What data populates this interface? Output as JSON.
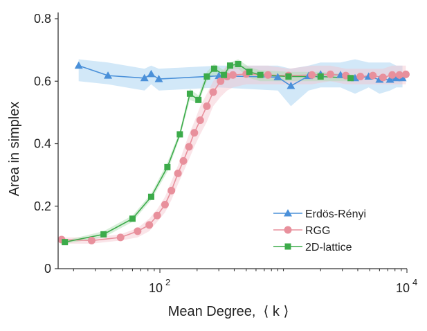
{
  "chart_data": {
    "type": "line",
    "x_scale": "log",
    "xlim": [
      15,
      10000
    ],
    "ylim": [
      0,
      0.82
    ],
    "xlabel": "Mean Degree,  ⟨ k ⟩",
    "ylabel": "Area in simplex",
    "yticks": [
      "0",
      "0.2",
      "0.4",
      "0.6",
      "0.8"
    ],
    "ytick_values": [
      0,
      0.2,
      0.4,
      0.6,
      0.8
    ],
    "xtick_base": "10",
    "xticks": [
      {
        "value": 100,
        "exp": "2"
      },
      {
        "value": 10000,
        "exp": "4"
      }
    ],
    "legend_position": "lower-right",
    "series": [
      {
        "name": "Erdös-Rényi",
        "color": "#4a90d9",
        "band_color": "#9ccbef",
        "marker": "triangle",
        "x": [
          22,
          38,
          75,
          85,
          98,
          300,
          900,
          1150,
          1600,
          2000,
          2900,
          3800,
          4900,
          6000,
          7300,
          8200,
          9200
        ],
        "y": [
          0.65,
          0.618,
          0.61,
          0.623,
          0.607,
          0.617,
          0.613,
          0.585,
          0.617,
          0.622,
          0.62,
          0.61,
          0.615,
          0.605,
          0.605,
          0.61,
          0.61
        ],
        "y_low": [
          0.6,
          0.59,
          0.57,
          0.59,
          0.57,
          0.58,
          0.57,
          0.52,
          0.57,
          0.58,
          0.58,
          0.56,
          0.58,
          0.56,
          0.57,
          0.58,
          0.58
        ],
        "y_high": [
          0.67,
          0.66,
          0.64,
          0.65,
          0.64,
          0.65,
          0.65,
          0.64,
          0.65,
          0.66,
          0.66,
          0.67,
          0.66,
          0.66,
          0.66,
          0.65,
          0.65
        ]
      },
      {
        "name": "RGG",
        "color": "#e8909c",
        "band_color": "#f5c4cb",
        "marker": "circle",
        "x": [
          16,
          28,
          48,
          66,
          82,
          95,
          110,
          124,
          140,
          155,
          172,
          190,
          212,
          240,
          270,
          310,
          350,
          390,
          500,
          750,
          1100,
          1700,
          2400,
          3200,
          4200,
          5300,
          6400,
          7600,
          8700,
          9800
        ],
        "y": [
          0.093,
          0.09,
          0.1,
          0.12,
          0.14,
          0.17,
          0.205,
          0.25,
          0.305,
          0.345,
          0.39,
          0.435,
          0.475,
          0.52,
          0.565,
          0.6,
          0.615,
          0.62,
          0.623,
          0.62,
          0.618,
          0.62,
          0.622,
          0.618,
          0.615,
          0.618,
          0.612,
          0.62,
          0.62,
          0.622
        ],
        "y_low": [
          0.08,
          0.08,
          0.09,
          0.1,
          0.12,
          0.15,
          0.18,
          0.22,
          0.27,
          0.31,
          0.35,
          0.39,
          0.43,
          0.47,
          0.52,
          0.55,
          0.57,
          0.58,
          0.59,
          0.59,
          0.59,
          0.59,
          0.6,
          0.59,
          0.59,
          0.59,
          0.59,
          0.59,
          0.59,
          0.59
        ],
        "y_high": [
          0.1,
          0.1,
          0.11,
          0.13,
          0.16,
          0.19,
          0.23,
          0.28,
          0.33,
          0.38,
          0.43,
          0.47,
          0.52,
          0.56,
          0.6,
          0.63,
          0.65,
          0.65,
          0.65,
          0.65,
          0.64,
          0.65,
          0.65,
          0.64,
          0.64,
          0.64,
          0.64,
          0.65,
          0.65,
          0.65
        ]
      },
      {
        "name": "2D-lattice",
        "color": "#3cab4a",
        "band_color": "#a9dcae",
        "marker": "square",
        "x": [
          17,
          35,
          60,
          85,
          115,
          145,
          175,
          205,
          240,
          275,
          330,
          370,
          430,
          530,
          650,
          1100,
          2000,
          3500
        ],
        "y": [
          0.085,
          0.11,
          0.16,
          0.23,
          0.325,
          0.43,
          0.56,
          0.54,
          0.615,
          0.64,
          0.62,
          0.65,
          0.655,
          0.63,
          0.62,
          0.615,
          0.615,
          0.61
        ],
        "y_low": [
          0.08,
          0.1,
          0.15,
          0.22,
          0.31,
          0.42,
          0.54,
          0.53,
          0.6,
          0.62,
          0.6,
          0.64,
          0.64,
          0.61,
          0.6,
          0.6,
          0.6,
          0.6
        ],
        "y_high": [
          0.09,
          0.12,
          0.17,
          0.24,
          0.34,
          0.44,
          0.575,
          0.555,
          0.63,
          0.655,
          0.635,
          0.66,
          0.67,
          0.645,
          0.635,
          0.63,
          0.63,
          0.62
        ]
      }
    ]
  }
}
